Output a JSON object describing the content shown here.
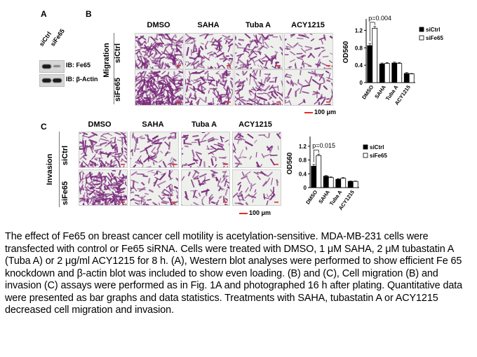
{
  "panels": {
    "a": "A",
    "b": "B",
    "c": "C"
  },
  "western_blot": {
    "lane_labels": [
      "siCtrl",
      "siFe65"
    ],
    "rows": [
      "IB: Fe65",
      "IB: β-Actin"
    ]
  },
  "migration": {
    "row_group_label": "Migration",
    "row_labels": [
      "siCtrl",
      "siFe65"
    ],
    "columns": [
      "DMSO",
      "SAHA",
      "Tuba A",
      "ACY1215"
    ],
    "scale_text": "100 μm"
  },
  "invasion": {
    "row_group_label": "Invasion",
    "row_labels": [
      "siCtrl",
      "siFe65"
    ],
    "columns": [
      "DMSO",
      "SAHA",
      "Tuba A",
      "ACY1215"
    ],
    "scale_text": "100 μm"
  },
  "colors": {
    "bar_ctrl": "#000000",
    "bar_fe65": "#ffffff",
    "stain": "#7b2a7c",
    "scale": "#e03020"
  },
  "chart_data": [
    {
      "type": "bar",
      "panel": "B",
      "categories": [
        "DMSO",
        "SAHA",
        "Tuba A",
        "ACY1215"
      ],
      "ylabel": "OD560",
      "ylim": [
        0,
        1.4
      ],
      "yticks": [
        "0",
        "0.4",
        "0.8",
        "1.2"
      ],
      "yticks_values": [
        0,
        0.4,
        0.8,
        1.2
      ],
      "annotation": "p=0.004",
      "legend_position": "top-right",
      "series": [
        {
          "name": "siCtrl",
          "values": [
            0.85,
            0.43,
            0.45,
            0.21
          ],
          "errors": [
            0.05,
            0.02,
            0.02,
            0.02
          ]
        },
        {
          "name": "siFe65",
          "values": [
            1.25,
            0.44,
            0.44,
            0.2
          ],
          "errors": [
            0.04,
            0.02,
            0.02,
            0.01
          ]
        }
      ]
    },
    {
      "type": "bar",
      "panel": "C",
      "categories": [
        "DMSO",
        "SAHA",
        "Tuba A",
        "ACY1215"
      ],
      "ylabel": "OD560",
      "ylim": [
        0,
        1.4
      ],
      "yticks": [
        "0",
        "0.4",
        "0.8",
        "1.2"
      ],
      "yticks_values": [
        0,
        0.4,
        0.8,
        1.2
      ],
      "annotation": "p=0.015",
      "legend_position": "top-right",
      "series": [
        {
          "name": "siCtrl",
          "values": [
            0.62,
            0.33,
            0.24,
            0.18
          ],
          "errors": [
            0.05,
            0.02,
            0.02,
            0.01
          ]
        },
        {
          "name": "siFe65",
          "values": [
            0.93,
            0.29,
            0.27,
            0.18
          ],
          "errors": [
            0.04,
            0.02,
            0.02,
            0.01
          ]
        }
      ]
    }
  ],
  "caption": "The effect of Fe65 on breast cancer cell motility is acetylation-sensitive. MDA-MB-231 cells were transfected with control or Fe65 siRNA. Cells were treated with DMSO, 1 μM SAHA, 2 μM tubastatin A (Tuba A) or 2 μg/ml ACY1215 for 8 h. (A), Western blot analyses were performed to show efficient Fe 65 knockdown and β-actin blot was included to show even loading. (B) and (C), Cell migration (B) and invasion (C) assays were performed as in Fig. 1A and photographed 16 h after plating. Quantitative data were presented as bar graphs and data statistics. Treatments with SAHA, tubastatin A or ACY1215 decreased cell migration and invasion."
}
